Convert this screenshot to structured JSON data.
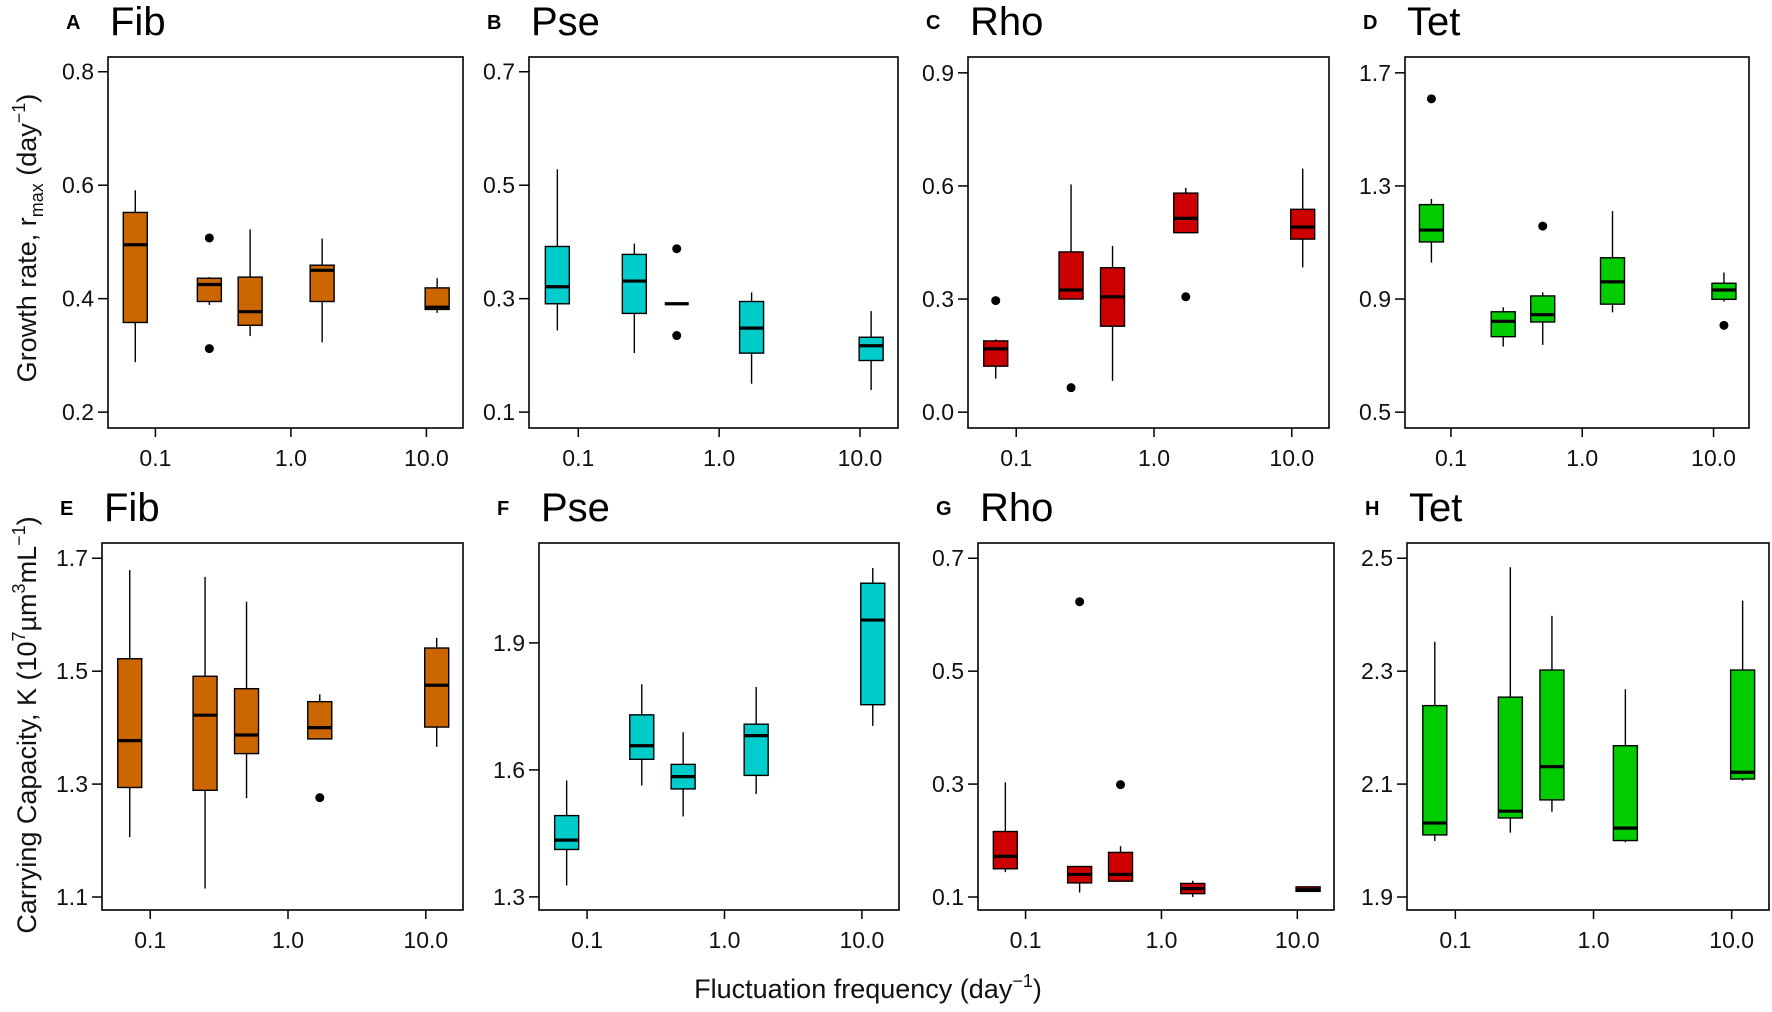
{
  "labels": {
    "ylabel_top": {
      "main": "Growth rate, r",
      "sub": "max",
      "mid": " (day",
      "sup": "−1",
      "end": ")"
    },
    "ylabel_bottom": {
      "main": "Carrying Capacity, K (10",
      "sup1": "7",
      "mid1": "µm",
      "sup2": "3",
      "mid2": "mL",
      "sup3": "−1",
      "end": ")"
    },
    "xlabel": {
      "main": "Fluctuation frequency (day",
      "sup": "−1",
      "end": ")"
    }
  },
  "chart_data": [
    {
      "type": "box",
      "letter": "A",
      "title": "Fib",
      "color": "#CC6600",
      "ylim": [
        0.172,
        0.826
      ],
      "yticks": [
        "0.2",
        "0.4",
        "0.6",
        "0.8"
      ],
      "xticks": [
        "0.1",
        "1.0",
        "10.0"
      ],
      "xscale": "log",
      "boxes": [
        {
          "x": 0.071,
          "low": 0.288,
          "q1": 0.358,
          "median": 0.495,
          "q3": 0.552,
          "high": 0.591,
          "outliers": []
        },
        {
          "x": 0.25,
          "low": 0.389,
          "q1": 0.395,
          "median": 0.425,
          "q3": 0.436,
          "high": 0.438,
          "outliers": [
            0.507,
            0.312
          ]
        },
        {
          "x": 0.5,
          "low": 0.334,
          "q1": 0.353,
          "median": 0.377,
          "q3": 0.438,
          "high": 0.522,
          "outliers": []
        },
        {
          "x": 1.7,
          "low": 0.323,
          "q1": 0.395,
          "median": 0.45,
          "q3": 0.459,
          "high": 0.506,
          "outliers": []
        },
        {
          "x": 12,
          "low": 0.375,
          "q1": 0.381,
          "median": 0.385,
          "q3": 0.419,
          "high": 0.436,
          "outliers": []
        }
      ]
    },
    {
      "type": "box",
      "letter": "B",
      "title": "Pse",
      "color": "#00CCCC",
      "ylim": [
        0.072,
        0.726
      ],
      "yticks": [
        "0.1",
        "0.3",
        "0.5",
        "0.7"
      ],
      "xticks": [
        "0.1",
        "1.0",
        "10.0"
      ],
      "xscale": "log",
      "boxes": [
        {
          "x": 0.071,
          "low": 0.244,
          "q1": 0.291,
          "median": 0.321,
          "q3": 0.392,
          "high": 0.528,
          "outliers": []
        },
        {
          "x": 0.25,
          "low": 0.204,
          "q1": 0.274,
          "median": 0.331,
          "q3": 0.378,
          "high": 0.397,
          "outliers": []
        },
        {
          "x": 0.5,
          "low": 0.291,
          "q1": 0.291,
          "median": 0.291,
          "q3": 0.291,
          "high": 0.291,
          "outliers": [
            0.388,
            0.235
          ]
        },
        {
          "x": 1.7,
          "low": 0.15,
          "q1": 0.204,
          "median": 0.248,
          "q3": 0.295,
          "high": 0.311,
          "outliers": []
        },
        {
          "x": 12,
          "low": 0.139,
          "q1": 0.191,
          "median": 0.217,
          "q3": 0.232,
          "high": 0.278,
          "outliers": []
        }
      ]
    },
    {
      "type": "box",
      "letter": "C",
      "title": "Rho",
      "color": "#CC0000",
      "ylim": [
        -0.042,
        0.942
      ],
      "yticks": [
        "0.0",
        "0.3",
        "0.6",
        "0.9"
      ],
      "xticks": [
        "0.1",
        "1.0",
        "10.0"
      ],
      "xscale": "log",
      "boxes": [
        {
          "x": 0.071,
          "low": 0.089,
          "q1": 0.122,
          "median": 0.168,
          "q3": 0.189,
          "high": 0.193,
          "outliers": [
            0.296
          ]
        },
        {
          "x": 0.25,
          "low": 0.3,
          "q1": 0.3,
          "median": 0.324,
          "q3": 0.425,
          "high": 0.604,
          "outliers": [
            0.065
          ]
        },
        {
          "x": 0.5,
          "low": 0.083,
          "q1": 0.228,
          "median": 0.306,
          "q3": 0.383,
          "high": 0.441,
          "outliers": []
        },
        {
          "x": 1.7,
          "low": 0.476,
          "q1": 0.476,
          "median": 0.514,
          "q3": 0.581,
          "high": 0.595,
          "outliers": [
            0.306
          ]
        },
        {
          "x": 12,
          "low": 0.384,
          "q1": 0.459,
          "median": 0.491,
          "q3": 0.538,
          "high": 0.646,
          "outliers": []
        }
      ]
    },
    {
      "type": "box",
      "letter": "D",
      "title": "Tet",
      "color": "#00CC00",
      "ylim": [
        0.444,
        1.756
      ],
      "yticks": [
        "0.5",
        "0.9",
        "1.3",
        "1.7"
      ],
      "xticks": [
        "0.1",
        "1.0",
        "10.0"
      ],
      "xscale": "log",
      "boxes": [
        {
          "x": 0.071,
          "low": 1.029,
          "q1": 1.102,
          "median": 1.144,
          "q3": 1.234,
          "high": 1.254,
          "outliers": [
            1.608
          ]
        },
        {
          "x": 0.25,
          "low": 0.732,
          "q1": 0.767,
          "median": 0.821,
          "q3": 0.855,
          "high": 0.871,
          "outliers": []
        },
        {
          "x": 0.5,
          "low": 0.738,
          "q1": 0.819,
          "median": 0.845,
          "q3": 0.911,
          "high": 0.924,
          "outliers": [
            1.158
          ]
        },
        {
          "x": 1.7,
          "low": 0.853,
          "q1": 0.882,
          "median": 0.961,
          "q3": 1.046,
          "high": 1.211,
          "outliers": []
        },
        {
          "x": 12,
          "low": 0.891,
          "q1": 0.899,
          "median": 0.932,
          "q3": 0.956,
          "high": 0.994,
          "outliers": [
            0.807
          ]
        }
      ]
    },
    {
      "type": "box",
      "letter": "E",
      "title": "Fib",
      "color": "#CC6600",
      "ylim": [
        1.077,
        1.727
      ],
      "yticks": [
        "1.1",
        "1.3",
        "1.5",
        "1.7"
      ],
      "xticks": [
        "0.1",
        "1.0",
        "10.0"
      ],
      "xscale": "log",
      "boxes": [
        {
          "x": 0.071,
          "low": 1.206,
          "q1": 1.294,
          "median": 1.377,
          "q3": 1.522,
          "high": 1.679,
          "outliers": []
        },
        {
          "x": 0.25,
          "low": 1.115,
          "q1": 1.289,
          "median": 1.422,
          "q3": 1.491,
          "high": 1.667,
          "outliers": []
        },
        {
          "x": 0.5,
          "low": 1.275,
          "q1": 1.354,
          "median": 1.387,
          "q3": 1.469,
          "high": 1.623,
          "outliers": []
        },
        {
          "x": 1.7,
          "low": 1.38,
          "q1": 1.38,
          "median": 1.4,
          "q3": 1.446,
          "high": 1.459,
          "outliers": [
            1.276
          ]
        },
        {
          "x": 12,
          "low": 1.366,
          "q1": 1.401,
          "median": 1.475,
          "q3": 1.541,
          "high": 1.559,
          "outliers": []
        }
      ]
    },
    {
      "type": "box",
      "letter": "F",
      "title": "Pse",
      "color": "#00CCCC",
      "ylim": [
        1.269,
        2.136
      ],
      "yticks": [
        "1.3",
        "1.6",
        "1.9"
      ],
      "xticks": [
        "0.1",
        "1.0",
        "10.0"
      ],
      "xscale": "log",
      "boxes": [
        {
          "x": 0.071,
          "low": 1.327,
          "q1": 1.412,
          "median": 1.434,
          "q3": 1.492,
          "high": 1.575,
          "outliers": []
        },
        {
          "x": 0.25,
          "low": 1.563,
          "q1": 1.625,
          "median": 1.657,
          "q3": 1.73,
          "high": 1.802,
          "outliers": []
        },
        {
          "x": 0.5,
          "low": 1.49,
          "q1": 1.555,
          "median": 1.584,
          "q3": 1.613,
          "high": 1.689,
          "outliers": []
        },
        {
          "x": 1.7,
          "low": 1.543,
          "q1": 1.587,
          "median": 1.681,
          "q3": 1.708,
          "high": 1.796,
          "outliers": []
        },
        {
          "x": 12,
          "low": 1.704,
          "q1": 1.754,
          "median": 1.954,
          "q3": 2.041,
          "high": 2.077,
          "outliers": []
        }
      ]
    },
    {
      "type": "box",
      "letter": "G",
      "title": "Rho",
      "color": "#CC0000",
      "ylim": [
        0.077,
        0.727
      ],
      "yticks": [
        "0.1",
        "0.3",
        "0.5",
        "0.7"
      ],
      "xticks": [
        "0.1",
        "1.0",
        "10.0"
      ],
      "xscale": "log",
      "boxes": [
        {
          "x": 0.071,
          "low": 0.144,
          "q1": 0.15,
          "median": 0.172,
          "q3": 0.216,
          "high": 0.303,
          "outliers": []
        },
        {
          "x": 0.25,
          "low": 0.108,
          "q1": 0.125,
          "median": 0.14,
          "q3": 0.154,
          "high": 0.154,
          "outliers": [
            0.623
          ]
        },
        {
          "x": 0.5,
          "low": 0.128,
          "q1": 0.128,
          "median": 0.14,
          "q3": 0.179,
          "high": 0.19,
          "outliers": [
            0.299
          ]
        },
        {
          "x": 1.7,
          "low": 0.1,
          "q1": 0.106,
          "median": 0.115,
          "q3": 0.124,
          "high": 0.129,
          "outliers": []
        },
        {
          "x": 12,
          "low": 0.11,
          "q1": 0.11,
          "median": 0.113,
          "q3": 0.118,
          "high": 0.118,
          "outliers": []
        }
      ]
    },
    {
      "type": "box",
      "letter": "H",
      "title": "Tet",
      "color": "#00CC00",
      "ylim": [
        1.877,
        2.527
      ],
      "yticks": [
        "1.9",
        "2.1",
        "2.3",
        "2.5"
      ],
      "xticks": [
        "0.1",
        "1.0",
        "10.0"
      ],
      "xscale": "log",
      "boxes": [
        {
          "x": 0.071,
          "low": 1.999,
          "q1": 2.01,
          "median": 2.031,
          "q3": 2.239,
          "high": 2.352,
          "outliers": []
        },
        {
          "x": 0.25,
          "low": 2.014,
          "q1": 2.04,
          "median": 2.052,
          "q3": 2.254,
          "high": 2.484,
          "outliers": []
        },
        {
          "x": 0.5,
          "low": 2.051,
          "q1": 2.072,
          "median": 2.131,
          "q3": 2.302,
          "high": 2.398,
          "outliers": []
        },
        {
          "x": 1.7,
          "low": 1.997,
          "q1": 2.0,
          "median": 2.022,
          "q3": 2.168,
          "high": 2.268,
          "outliers": []
        },
        {
          "x": 12,
          "low": 2.106,
          "q1": 2.109,
          "median": 2.121,
          "q3": 2.302,
          "high": 2.425,
          "outliers": []
        }
      ]
    }
  ]
}
